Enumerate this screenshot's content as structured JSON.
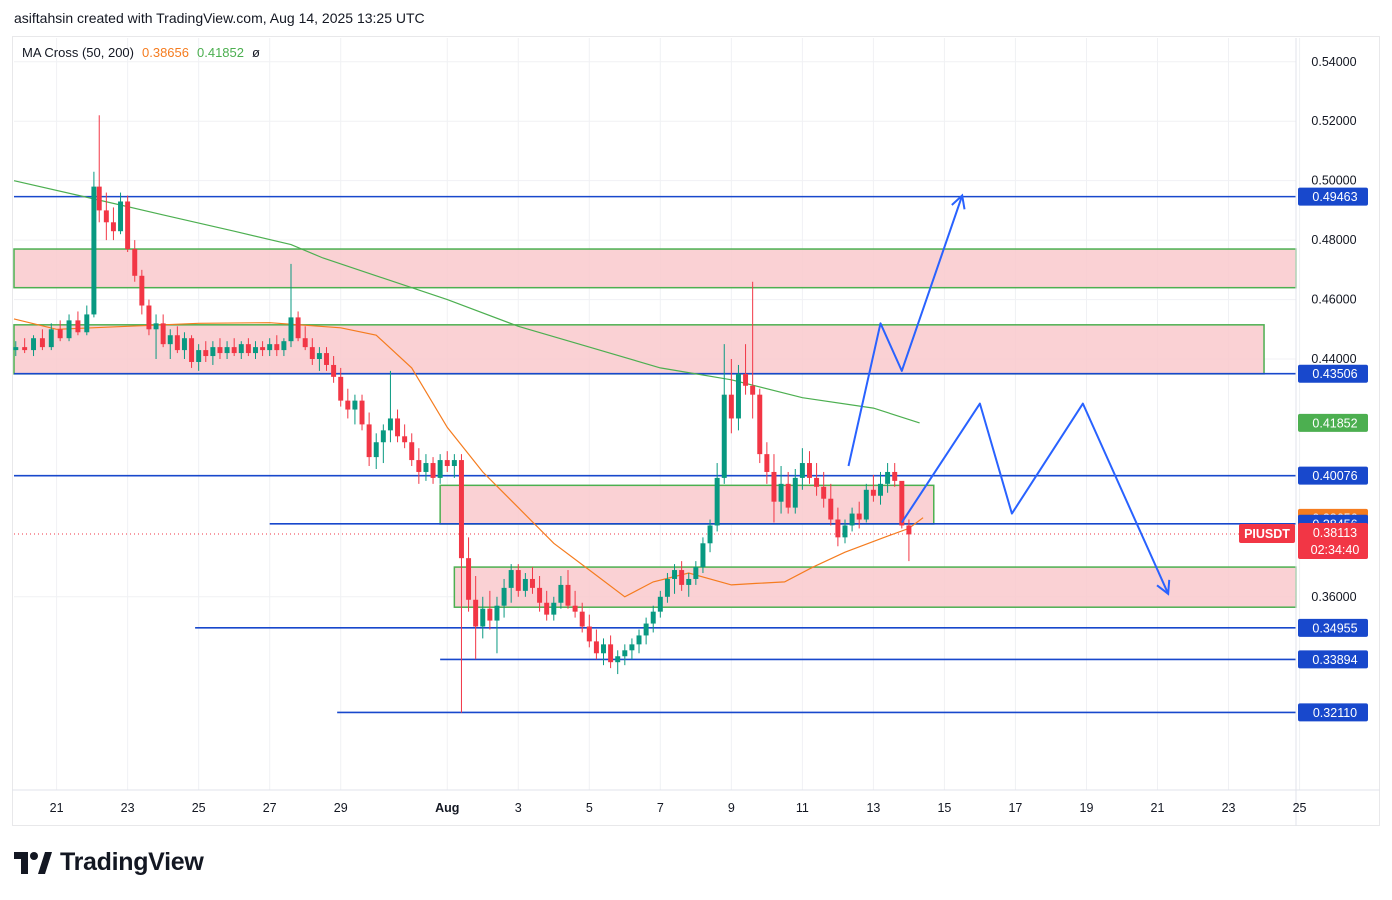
{
  "header": {
    "attribution": "asiftahsin created with TradingView.com, Aug 14, 2025 13:25 UTC"
  },
  "indicator": {
    "name": "MA Cross (50, 200)",
    "ma50_value": "0.38656",
    "ma200_value": "0.41852",
    "symbol": "ø"
  },
  "brand": {
    "name": "TradingView"
  },
  "colors": {
    "up": "#089981",
    "down": "#f23645",
    "ma50": "#f57c1f",
    "ma200": "#4caf50",
    "level": "#1848cc",
    "zone_fill": "#f9c9cc",
    "zone_border": "#4caf50",
    "projection": "#2962ff"
  },
  "chart_data": {
    "type": "candlestick",
    "symbol": "PIUSDT",
    "y_range": [
      0.295,
      0.548
    ],
    "y_ticks": [
      "0.54000",
      "0.52000",
      "0.50000",
      "0.48000",
      "0.46000",
      "0.44000",
      "0.36000"
    ],
    "x_ticks": [
      {
        "label": "21",
        "day": 21
      },
      {
        "label": "23",
        "day": 23
      },
      {
        "label": "25",
        "day": 25
      },
      {
        "label": "27",
        "day": 27
      },
      {
        "label": "29",
        "day": 29
      },
      {
        "label": "Aug",
        "day": 32
      },
      {
        "label": "3",
        "day": 34
      },
      {
        "label": "5",
        "day": 36
      },
      {
        "label": "7",
        "day": 38
      },
      {
        "label": "9",
        "day": 40
      },
      {
        "label": "11",
        "day": 42
      },
      {
        "label": "13",
        "day": 44
      },
      {
        "label": "15",
        "day": 46
      },
      {
        "label": "17",
        "day": 48
      },
      {
        "label": "19",
        "day": 50
      },
      {
        "label": "21",
        "day": 52
      },
      {
        "label": "23",
        "day": 54
      },
      {
        "label": "25",
        "day": 56
      }
    ],
    "x_domain": [
      19.8,
      55.9
    ],
    "last_price": {
      "symbol_label": "PIUSDT",
      "price": "0.38113",
      "countdown": "02:34:40"
    },
    "price_labels": [
      {
        "text": "0.49463",
        "value": 0.49463,
        "kind": "level"
      },
      {
        "text": "0.43506",
        "value": 0.43506,
        "kind": "level"
      },
      {
        "text": "0.41852",
        "value": 0.41852,
        "kind": "ma200"
      },
      {
        "text": "0.40076",
        "value": 0.40076,
        "kind": "level"
      },
      {
        "text": "0.38656",
        "value": 0.38656,
        "kind": "ma50"
      },
      {
        "text": "0.38456",
        "value": 0.38456,
        "kind": "level"
      },
      {
        "text": "0.34955",
        "value": 0.34955,
        "kind": "level"
      },
      {
        "text": "0.33894",
        "value": 0.33894,
        "kind": "level"
      },
      {
        "text": "0.32110",
        "value": 0.3211,
        "kind": "level"
      }
    ],
    "levels": [
      {
        "value": 0.49463,
        "from_day": 19.8
      },
      {
        "value": 0.43506,
        "from_day": 19.8
      },
      {
        "value": 0.40076,
        "from_day": 19.8
      },
      {
        "value": 0.38456,
        "from_day": 27.0
      },
      {
        "value": 0.34955,
        "from_day": 24.9
      },
      {
        "value": 0.33894,
        "from_day": 31.8
      },
      {
        "value": 0.3211,
        "from_day": 28.9
      }
    ],
    "zones": [
      {
        "low": 0.464,
        "high": 0.477,
        "from_day": 19.8,
        "to_day": 55.9
      },
      {
        "low": 0.435,
        "high": 0.4515,
        "from_day": 19.8,
        "to_day": 55.0
      },
      {
        "low": 0.3845,
        "high": 0.3975,
        "from_day": 31.8,
        "to_day": 45.7
      },
      {
        "low": 0.3565,
        "high": 0.37,
        "from_day": 32.2,
        "to_day": 55.9
      }
    ],
    "projection_paths": [
      [
        [
          43.3,
          0.404
        ],
        [
          44.2,
          0.452
        ],
        [
          44.8,
          0.436
        ],
        [
          46.5,
          0.495
        ]
      ],
      [
        [
          44.8,
          0.385
        ],
        [
          47.0,
          0.425
        ],
        [
          47.9,
          0.388
        ],
        [
          49.9,
          0.425
        ],
        [
          52.3,
          0.361
        ]
      ]
    ],
    "ma200": [
      [
        19.8,
        0.5
      ],
      [
        22,
        0.494
      ],
      [
        24,
        0.4885
      ],
      [
        26,
        0.483
      ],
      [
        27.6,
        0.4785
      ],
      [
        28.5,
        0.474
      ],
      [
        30,
        0.468
      ],
      [
        32,
        0.46
      ],
      [
        34,
        0.451
      ],
      [
        36,
        0.444
      ],
      [
        38,
        0.437
      ],
      [
        40,
        0.433
      ],
      [
        42,
        0.427
      ],
      [
        44,
        0.4235
      ],
      [
        45.3,
        0.4185
      ]
    ],
    "ma50": [
      [
        19.8,
        0.4535
      ],
      [
        21,
        0.45
      ],
      [
        23,
        0.451
      ],
      [
        25,
        0.452
      ],
      [
        27,
        0.4522
      ],
      [
        29,
        0.4505
      ],
      [
        30,
        0.448
      ],
      [
        31,
        0.437
      ],
      [
        32,
        0.417
      ],
      [
        33,
        0.402
      ],
      [
        34,
        0.39
      ],
      [
        35,
        0.378
      ],
      [
        36,
        0.369
      ],
      [
        37,
        0.36
      ],
      [
        37.8,
        0.365
      ],
      [
        38.8,
        0.368
      ],
      [
        40,
        0.364
      ],
      [
        40.7,
        0.3645
      ],
      [
        41.5,
        0.365
      ],
      [
        42.3,
        0.37
      ],
      [
        43.2,
        0.375
      ],
      [
        44.3,
        0.38
      ],
      [
        45.0,
        0.383
      ],
      [
        45.4,
        0.3866
      ]
    ],
    "candles": [
      [
        19.85,
        0.443,
        0.446,
        0.441,
        0.444
      ],
      [
        20.1,
        0.444,
        0.447,
        0.442,
        0.443
      ],
      [
        20.35,
        0.443,
        0.448,
        0.441,
        0.447
      ],
      [
        20.6,
        0.447,
        0.45,
        0.443,
        0.444
      ],
      [
        20.85,
        0.444,
        0.452,
        0.443,
        0.45
      ],
      [
        21.1,
        0.45,
        0.453,
        0.446,
        0.447
      ],
      [
        21.35,
        0.447,
        0.455,
        0.446,
        0.453
      ],
      [
        21.6,
        0.453,
        0.456,
        0.448,
        0.449
      ],
      [
        21.85,
        0.449,
        0.458,
        0.448,
        0.455
      ],
      [
        22.05,
        0.455,
        0.503,
        0.454,
        0.498
      ],
      [
        22.2,
        0.498,
        0.522,
        0.486,
        0.49
      ],
      [
        22.4,
        0.49,
        0.496,
        0.48,
        0.486
      ],
      [
        22.6,
        0.486,
        0.491,
        0.48,
        0.483
      ],
      [
        22.8,
        0.483,
        0.496,
        0.482,
        0.493
      ],
      [
        23.0,
        0.493,
        0.495,
        0.476,
        0.477
      ],
      [
        23.2,
        0.477,
        0.48,
        0.466,
        0.468
      ],
      [
        23.4,
        0.468,
        0.47,
        0.455,
        0.458
      ],
      [
        23.6,
        0.458,
        0.46,
        0.448,
        0.45
      ],
      [
        23.8,
        0.45,
        0.455,
        0.44,
        0.452
      ],
      [
        24.0,
        0.452,
        0.455,
        0.444,
        0.445
      ],
      [
        24.2,
        0.445,
        0.45,
        0.44,
        0.448
      ],
      [
        24.4,
        0.448,
        0.451,
        0.442,
        0.443
      ],
      [
        24.6,
        0.443,
        0.449,
        0.44,
        0.447
      ],
      [
        24.8,
        0.447,
        0.448,
        0.437,
        0.439
      ],
      [
        25.0,
        0.439,
        0.445,
        0.436,
        0.443
      ],
      [
        25.2,
        0.443,
        0.446,
        0.439,
        0.441
      ],
      [
        25.4,
        0.441,
        0.446,
        0.438,
        0.444
      ],
      [
        25.6,
        0.444,
        0.447,
        0.44,
        0.442
      ],
      [
        25.8,
        0.442,
        0.446,
        0.44,
        0.444
      ],
      [
        26.0,
        0.444,
        0.447,
        0.441,
        0.442
      ],
      [
        26.2,
        0.442,
        0.446,
        0.44,
        0.445
      ],
      [
        26.4,
        0.445,
        0.447,
        0.441,
        0.442
      ],
      [
        26.6,
        0.442,
        0.446,
        0.44,
        0.444
      ],
      [
        26.8,
        0.444,
        0.446,
        0.441,
        0.443
      ],
      [
        27.0,
        0.443,
        0.447,
        0.441,
        0.445
      ],
      [
        27.2,
        0.445,
        0.448,
        0.441,
        0.443
      ],
      [
        27.4,
        0.443,
        0.447,
        0.441,
        0.446
      ],
      [
        27.6,
        0.446,
        0.472,
        0.444,
        0.454
      ],
      [
        27.8,
        0.454,
        0.456,
        0.446,
        0.447
      ],
      [
        28.0,
        0.447,
        0.451,
        0.443,
        0.444
      ],
      [
        28.2,
        0.444,
        0.447,
        0.438,
        0.44
      ],
      [
        28.4,
        0.44,
        0.444,
        0.436,
        0.442
      ],
      [
        28.6,
        0.442,
        0.444,
        0.436,
        0.438
      ],
      [
        28.8,
        0.438,
        0.441,
        0.432,
        0.434
      ],
      [
        29.0,
        0.434,
        0.437,
        0.424,
        0.426
      ],
      [
        29.2,
        0.426,
        0.43,
        0.42,
        0.423
      ],
      [
        29.4,
        0.423,
        0.428,
        0.418,
        0.426
      ],
      [
        29.6,
        0.426,
        0.428,
        0.416,
        0.418
      ],
      [
        29.8,
        0.418,
        0.422,
        0.404,
        0.407
      ],
      [
        30.0,
        0.407,
        0.415,
        0.403,
        0.412
      ],
      [
        30.2,
        0.412,
        0.418,
        0.405,
        0.416
      ],
      [
        30.4,
        0.416,
        0.436,
        0.412,
        0.42
      ],
      [
        30.6,
        0.42,
        0.423,
        0.412,
        0.414
      ],
      [
        30.8,
        0.414,
        0.418,
        0.41,
        0.412
      ],
      [
        31.0,
        0.412,
        0.415,
        0.404,
        0.406
      ],
      [
        31.2,
        0.406,
        0.41,
        0.398,
        0.402
      ],
      [
        31.4,
        0.402,
        0.408,
        0.399,
        0.405
      ],
      [
        31.6,
        0.405,
        0.407,
        0.398,
        0.4
      ],
      [
        31.8,
        0.4,
        0.408,
        0.398,
        0.406
      ],
      [
        32.0,
        0.406,
        0.409,
        0.402,
        0.404
      ],
      [
        32.2,
        0.404,
        0.408,
        0.4,
        0.406
      ],
      [
        32.4,
        0.406,
        0.408,
        0.321,
        0.373
      ],
      [
        32.6,
        0.373,
        0.38,
        0.355,
        0.359
      ],
      [
        32.8,
        0.359,
        0.367,
        0.339,
        0.35
      ],
      [
        33.0,
        0.35,
        0.36,
        0.346,
        0.356
      ],
      [
        33.2,
        0.356,
        0.362,
        0.349,
        0.352
      ],
      [
        33.4,
        0.352,
        0.36,
        0.341,
        0.357
      ],
      [
        33.6,
        0.357,
        0.366,
        0.353,
        0.363
      ],
      [
        33.8,
        0.363,
        0.371,
        0.358,
        0.369
      ],
      [
        34.0,
        0.369,
        0.371,
        0.36,
        0.362
      ],
      [
        34.2,
        0.362,
        0.368,
        0.36,
        0.366
      ],
      [
        34.4,
        0.366,
        0.37,
        0.361,
        0.363
      ],
      [
        34.6,
        0.363,
        0.367,
        0.355,
        0.358
      ],
      [
        34.8,
        0.358,
        0.362,
        0.352,
        0.354
      ],
      [
        35.0,
        0.354,
        0.36,
        0.352,
        0.358
      ],
      [
        35.2,
        0.358,
        0.367,
        0.356,
        0.364
      ],
      [
        35.4,
        0.364,
        0.369,
        0.356,
        0.357
      ],
      [
        35.6,
        0.357,
        0.362,
        0.353,
        0.355
      ],
      [
        35.8,
        0.355,
        0.358,
        0.348,
        0.35
      ],
      [
        36.0,
        0.35,
        0.354,
        0.343,
        0.345
      ],
      [
        36.2,
        0.345,
        0.349,
        0.339,
        0.341
      ],
      [
        36.4,
        0.341,
        0.346,
        0.337,
        0.344
      ],
      [
        36.6,
        0.344,
        0.347,
        0.336,
        0.338
      ],
      [
        36.8,
        0.338,
        0.342,
        0.334,
        0.34
      ],
      [
        37.0,
        0.34,
        0.344,
        0.337,
        0.342
      ],
      [
        37.2,
        0.342,
        0.346,
        0.339,
        0.344
      ],
      [
        37.4,
        0.344,
        0.349,
        0.341,
        0.347
      ],
      [
        37.6,
        0.347,
        0.353,
        0.344,
        0.351
      ],
      [
        37.8,
        0.351,
        0.357,
        0.348,
        0.355
      ],
      [
        38.0,
        0.355,
        0.362,
        0.353,
        0.36
      ],
      [
        38.2,
        0.36,
        0.368,
        0.358,
        0.366
      ],
      [
        38.4,
        0.366,
        0.371,
        0.361,
        0.369
      ],
      [
        38.6,
        0.369,
        0.372,
        0.362,
        0.364
      ],
      [
        38.8,
        0.364,
        0.368,
        0.36,
        0.366
      ],
      [
        39.0,
        0.366,
        0.372,
        0.364,
        0.37
      ],
      [
        39.2,
        0.37,
        0.38,
        0.368,
        0.378
      ],
      [
        39.4,
        0.378,
        0.386,
        0.375,
        0.384
      ],
      [
        39.6,
        0.384,
        0.405,
        0.382,
        0.4
      ],
      [
        39.8,
        0.4,
        0.445,
        0.398,
        0.428
      ],
      [
        40.0,
        0.428,
        0.44,
        0.415,
        0.42
      ],
      [
        40.2,
        0.42,
        0.438,
        0.416,
        0.435
      ],
      [
        40.4,
        0.435,
        0.445,
        0.428,
        0.431
      ],
      [
        40.6,
        0.431,
        0.466,
        0.42,
        0.428
      ],
      [
        40.8,
        0.428,
        0.43,
        0.405,
        0.408
      ],
      [
        41.0,
        0.408,
        0.412,
        0.398,
        0.402
      ],
      [
        41.2,
        0.402,
        0.408,
        0.385,
        0.392
      ],
      [
        41.4,
        0.392,
        0.404,
        0.388,
        0.398
      ],
      [
        41.6,
        0.398,
        0.402,
        0.388,
        0.39
      ],
      [
        41.8,
        0.39,
        0.403,
        0.388,
        0.4
      ],
      [
        42.0,
        0.4,
        0.41,
        0.396,
        0.405
      ],
      [
        42.2,
        0.405,
        0.409,
        0.398,
        0.4
      ],
      [
        42.4,
        0.4,
        0.405,
        0.394,
        0.397
      ],
      [
        42.6,
        0.397,
        0.402,
        0.39,
        0.393
      ],
      [
        42.8,
        0.393,
        0.398,
        0.384,
        0.386
      ],
      [
        43.0,
        0.386,
        0.39,
        0.377,
        0.38
      ],
      [
        43.2,
        0.38,
        0.386,
        0.378,
        0.384
      ],
      [
        43.4,
        0.384,
        0.39,
        0.382,
        0.388
      ],
      [
        43.6,
        0.388,
        0.392,
        0.383,
        0.386
      ],
      [
        43.8,
        0.386,
        0.398,
        0.385,
        0.396
      ],
      [
        44.0,
        0.396,
        0.401,
        0.392,
        0.394
      ],
      [
        44.2,
        0.394,
        0.402,
        0.391,
        0.398
      ],
      [
        44.4,
        0.398,
        0.405,
        0.395,
        0.402
      ],
      [
        44.6,
        0.402,
        0.405,
        0.397,
        0.399
      ],
      [
        44.8,
        0.399,
        0.398,
        0.383,
        0.384
      ],
      [
        45.0,
        0.384,
        0.386,
        0.372,
        0.381
      ]
    ]
  }
}
